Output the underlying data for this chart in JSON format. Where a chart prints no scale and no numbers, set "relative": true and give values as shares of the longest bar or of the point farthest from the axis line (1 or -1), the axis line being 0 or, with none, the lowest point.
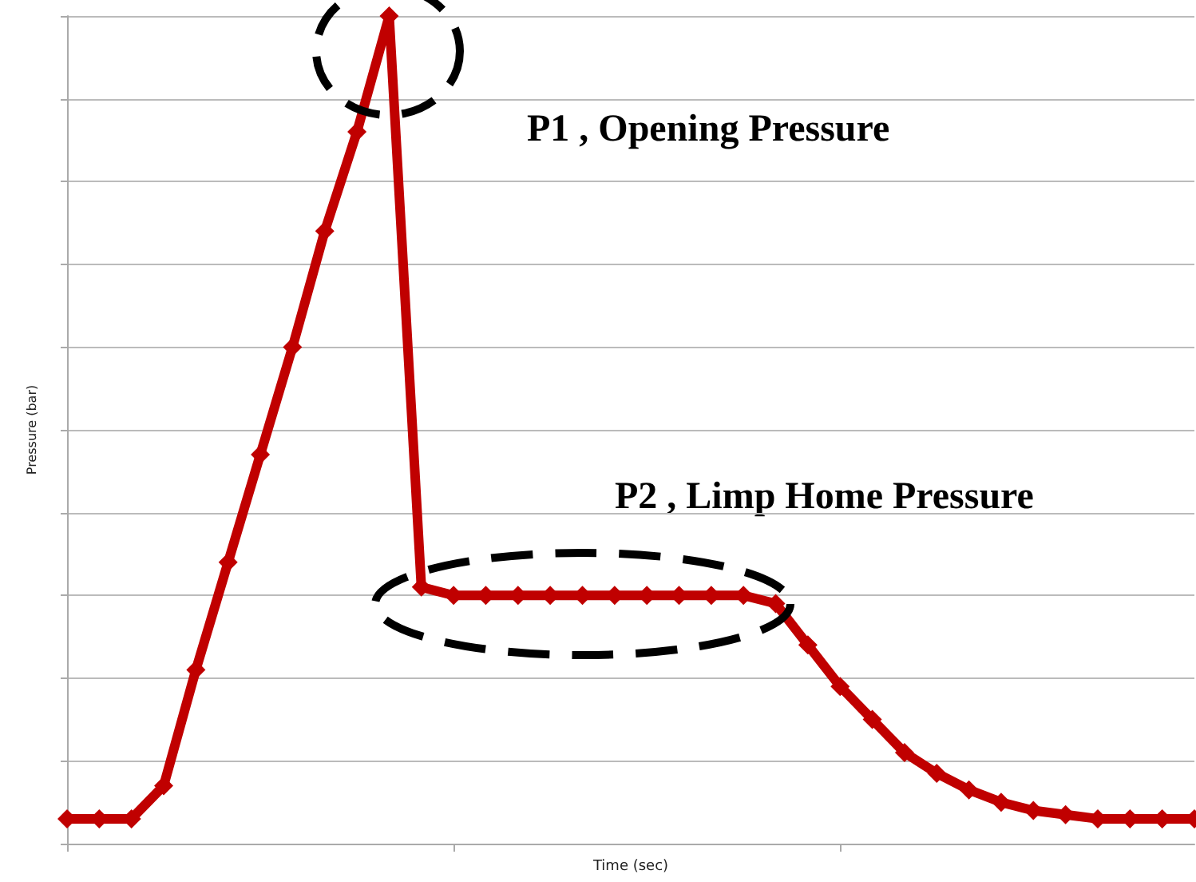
{
  "chart_data": {
    "type": "line",
    "relative": true,
    "xlabel": "Time (sec)",
    "ylabel": "Pressure (bar)",
    "annotations": [
      "P1 , Opening Pressure",
      "P2 , Limp Home Pressure"
    ],
    "categories": [
      null,
      null,
      null,
      null,
      null,
      null,
      null,
      null,
      null,
      null,
      null,
      null,
      null,
      null,
      null,
      null,
      null,
      null,
      null,
      null,
      null,
      null,
      null,
      null,
      null,
      null,
      null,
      null,
      null,
      null,
      null,
      null,
      null,
      null,
      null,
      null
    ],
    "series": [
      {
        "color": "#c00000",
        "values": [
          0.03,
          0.03,
          0.03,
          0.07,
          0.21,
          0.34,
          0.47,
          0.6,
          0.74,
          0.86,
          1,
          0.31,
          0.3,
          0.3,
          0.3,
          0.3,
          0.3,
          0.3,
          0.3,
          0.3,
          0.3,
          0.3,
          0.29,
          0.24,
          0.19,
          0.15,
          0.11,
          0.085,
          0.065,
          0.05,
          0.04,
          0.035,
          0.03,
          0.03,
          0.03,
          0.03
        ]
      }
    ],
    "grid": "y",
    "marker": "diamond",
    "line_style": "solid"
  }
}
